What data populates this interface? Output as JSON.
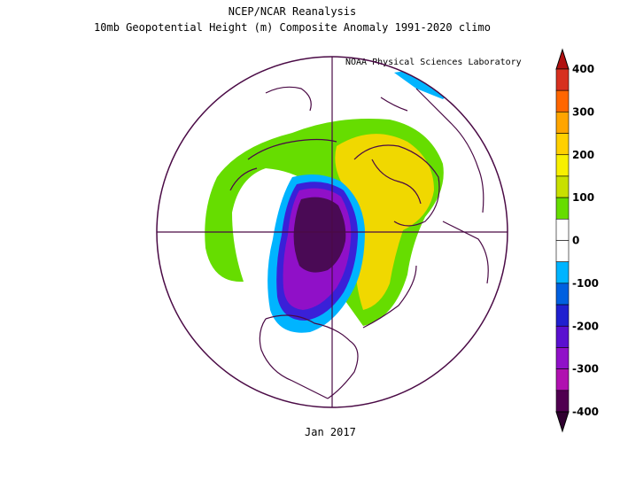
{
  "title_line1": "NCEP/NCAR Reanalysis",
  "title_line2": "10mb Geopotential Height (m) Composite Anomaly 1991-2020 climo",
  "credit": "NOAA Physical Sciences Laboratory",
  "date_label": "Jan 2017",
  "colorbar": {
    "labels": [
      "400",
      "300",
      "200",
      "100",
      "0",
      "-100",
      "-200",
      "-300",
      "-400"
    ],
    "bins": [
      {
        "color": "#d7301f"
      },
      {
        "color": "#ff6600"
      },
      {
        "color": "#ffa500"
      },
      {
        "color": "#ffd000"
      },
      {
        "color": "#f8f000"
      },
      {
        "color": "#c8e000"
      },
      {
        "color": "#66dd00"
      },
      {
        "color": "#ffffff"
      },
      {
        "color": "#ffffff"
      },
      {
        "color": "#00b4ff"
      },
      {
        "color": "#0060e0"
      },
      {
        "color": "#2020d0"
      },
      {
        "color": "#5a10d0"
      },
      {
        "color": "#9010c8"
      },
      {
        "color": "#b010b0"
      },
      {
        "color": "#500050"
      }
    ]
  },
  "colors": {
    "negative_core": "#4a0a55",
    "negative_mid": "#8010c0",
    "negative_outer": "#00b4ff",
    "positive_core": "#f0d800",
    "positive_outer": "#66dd00",
    "coastline": "#4a0a45"
  }
}
